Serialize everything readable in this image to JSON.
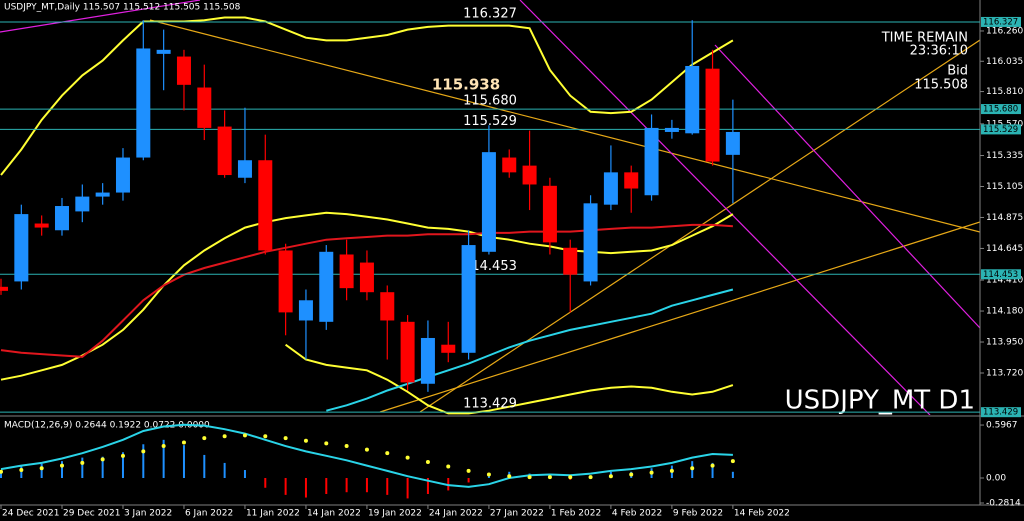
{
  "chart_data": {
    "type": "candlestick",
    "title": "USDJPY_MT,Daily  115.507 115.512 115.505 115.508",
    "symbol_label": "USDJPY_MT D1",
    "time_remain_label": "TIME REMAIN",
    "time_remain": "23:36:10",
    "bid_label": "Bid",
    "bid": "115.508",
    "high_label": 115.938,
    "up_color": "#1e90ff",
    "down_color": "#ff0000",
    "categories": [
      "24 Dec 2021",
      null,
      null,
      "29 Dec 2021",
      null,
      null,
      "3 Jan 2022",
      null,
      null,
      "6 Jan 2022",
      null,
      null,
      "11 Jan 2022",
      null,
      null,
      "14 Jan 2022",
      null,
      null,
      "19 Jan 2022",
      null,
      null,
      "24 Jan 2022",
      null,
      null,
      "27 Jan 2022",
      null,
      null,
      "1 Feb 2022",
      null,
      null,
      "4 Feb 2022",
      null,
      null,
      "9 Feb 2022",
      null,
      null,
      "14 Feb 2022"
    ],
    "open": [
      114.36,
      114.4,
      114.83,
      114.78,
      114.92,
      115.03,
      115.06,
      115.32,
      116.09,
      116.07,
      115.84,
      115.55,
      115.17,
      115.3,
      114.63,
      114.11,
      114.1,
      114.6,
      114.54,
      114.32,
      114.1,
      113.64,
      113.93,
      113.87,
      114.62,
      115.32,
      115.26,
      115.11,
      114.65,
      114.4,
      114.97,
      115.21,
      115.04,
      115.51,
      115.5,
      115.98,
      115.34
    ],
    "high": [
      114.42,
      114.97,
      114.89,
      115.02,
      115.12,
      115.13,
      115.39,
      116.34,
      116.27,
      116.12,
      116.01,
      115.67,
      115.69,
      115.49,
      114.68,
      114.34,
      114.67,
      114.71,
      114.63,
      114.37,
      114.15,
      114.11,
      114.1,
      114.78,
      115.56,
      115.38,
      115.52,
      115.17,
      114.71,
      115.04,
      115.41,
      115.26,
      115.64,
      115.6,
      116.34,
      116.12,
      115.75
    ],
    "low": [
      114.3,
      114.34,
      114.74,
      114.74,
      114.84,
      114.97,
      115.0,
      115.3,
      115.82,
      115.67,
      115.45,
      115.17,
      115.13,
      114.6,
      114.0,
      113.82,
      114.04,
      114.26,
      114.26,
      113.82,
      113.59,
      113.58,
      113.8,
      113.82,
      114.6,
      115.17,
      114.93,
      114.6,
      114.17,
      114.37,
      114.93,
      114.91,
      115.0,
      115.46,
      115.49,
      115.26,
      114.98
    ],
    "close": [
      114.33,
      114.9,
      114.8,
      114.96,
      115.03,
      115.06,
      115.32,
      116.13,
      116.12,
      115.86,
      115.54,
      115.19,
      115.3,
      114.63,
      114.17,
      114.26,
      114.62,
      114.35,
      114.32,
      114.11,
      113.65,
      113.98,
      113.87,
      114.67,
      115.36,
      115.21,
      115.12,
      114.69,
      114.45,
      114.98,
      115.21,
      115.09,
      115.54,
      115.54,
      116.0,
      115.29,
      115.51
    ],
    "overlays": [
      {
        "color": "#ffff33",
        "values": [
          115.19,
          115.38,
          115.6,
          115.78,
          115.93,
          116.04,
          116.19,
          116.33,
          116.33,
          116.33,
          116.34,
          116.36,
          116.36,
          116.33,
          116.27,
          116.21,
          116.19,
          116.19,
          116.21,
          116.23,
          116.27,
          116.29,
          116.3,
          116.3,
          116.3,
          116.3,
          116.28,
          115.97,
          115.78,
          115.66,
          115.65,
          115.66,
          115.75,
          115.88,
          116.01,
          116.1,
          116.19
        ]
      },
      {
        "color": "#ffff33",
        "values": [
          113.67,
          113.7,
          113.74,
          113.78,
          113.85,
          113.93,
          114.04,
          114.19,
          114.37,
          114.52,
          114.63,
          114.72,
          114.8,
          114.84,
          114.87,
          114.89,
          114.91,
          114.9,
          114.88,
          114.86,
          114.83,
          114.8,
          114.79,
          114.77,
          114.73,
          114.71,
          114.68,
          114.66,
          114.63,
          114.62,
          114.61,
          114.62,
          114.63,
          114.67,
          114.74,
          114.81,
          114.9
        ]
      },
      {
        "color": "#ffff33",
        "values": [
          null,
          null,
          null,
          null,
          null,
          null,
          null,
          null,
          null,
          null,
          null,
          null,
          null,
          null,
          113.93,
          113.82,
          113.78,
          113.76,
          113.74,
          113.67,
          113.58,
          113.48,
          113.42,
          113.42,
          113.44,
          113.47,
          113.5,
          113.53,
          113.56,
          113.59,
          113.61,
          113.62,
          113.61,
          113.58,
          113.56,
          113.58,
          113.63
        ]
      },
      {
        "color": "#e0161d",
        "values": [
          113.89,
          113.87,
          113.86,
          113.85,
          113.84,
          113.96,
          114.11,
          114.26,
          114.37,
          114.45,
          114.5,
          114.54,
          114.58,
          114.62,
          114.65,
          114.68,
          114.71,
          114.72,
          114.73,
          114.74,
          114.74,
          114.75,
          114.75,
          114.75,
          114.76,
          114.76,
          114.77,
          114.77,
          114.77,
          114.78,
          114.79,
          114.8,
          114.8,
          114.81,
          114.82,
          114.82,
          114.81
        ]
      },
      {
        "color": "#2ad4e8",
        "values": [
          null,
          null,
          null,
          null,
          null,
          null,
          null,
          null,
          null,
          null,
          null,
          null,
          null,
          null,
          null,
          null,
          113.44,
          113.48,
          113.53,
          113.59,
          113.64,
          113.69,
          113.74,
          113.79,
          113.85,
          113.91,
          113.96,
          114.0,
          114.04,
          114.07,
          114.1,
          114.13,
          114.16,
          114.22,
          114.26,
          114.3,
          114.34
        ]
      }
    ],
    "levels": [
      116.327,
      {
        "value": 115.68,
        "label": "115.680"
      },
      115.529,
      114.453,
      113.429
    ],
    "ylim": [
      113.408,
      116.49
    ],
    "yticks": [
      {
        "value": 116.26,
        "label": "116.260"
      },
      {
        "value": 116.035,
        "label": "116.035"
      },
      {
        "value": 115.81,
        "label": "115.810"
      },
      {
        "value": 115.57,
        "label": "115.570"
      },
      115.335,
      115.105,
      114.875,
      114.645,
      {
        "value": 114.41,
        "label": "114.410"
      },
      {
        "value": 114.18,
        "label": "114.180"
      },
      {
        "value": 113.95,
        "label": "113.950"
      },
      {
        "value": 113.72,
        "label": "113.720"
      }
    ],
    "macd": {
      "title": "MACD(12,26,9) 0.2644 0.1922 0.0722 0.0000",
      "ylim": [
        -0.304,
        0.676
      ],
      "yticks": [
        0.5967,
        {
          "value": 0,
          "label": "0.00"
        },
        -0.2814
      ],
      "main_color": "#2ad4e8",
      "signal_color": "#ffff33",
      "histogram": [
        0.09,
        0.14,
        0.16,
        0.19,
        0.23,
        0.24,
        0.29,
        0.38,
        0.43,
        0.37,
        0.26,
        0.17,
        0.09,
        -0.11,
        -0.19,
        -0.22,
        -0.18,
        -0.16,
        -0.16,
        -0.19,
        -0.23,
        -0.18,
        -0.14,
        -0.05,
        0.05,
        0.07,
        0.05,
        0.01,
        -0.02,
        0.02,
        0.07,
        0.07,
        0.11,
        0.14,
        0.19,
        0.17,
        0.07
      ],
      "main": [
        0.1,
        0.14,
        0.17,
        0.22,
        0.28,
        0.35,
        0.43,
        0.53,
        0.58,
        0.6,
        0.59,
        0.55,
        0.5,
        0.43,
        0.36,
        0.3,
        0.25,
        0.2,
        0.14,
        0.08,
        0.02,
        -0.03,
        -0.08,
        -0.1,
        -0.07,
        0.0,
        0.03,
        0.04,
        0.03,
        0.05,
        0.08,
        0.1,
        0.13,
        0.17,
        0.23,
        0.27,
        0.26
      ],
      "signal": [
        0.07,
        0.09,
        0.11,
        0.14,
        0.17,
        0.21,
        0.25,
        0.3,
        0.36,
        0.4,
        0.45,
        0.47,
        0.48,
        0.47,
        0.45,
        0.42,
        0.39,
        0.36,
        0.32,
        0.28,
        0.23,
        0.18,
        0.13,
        0.08,
        0.04,
        0.02,
        0.01,
        0.01,
        0.01,
        0.01,
        0.02,
        0.04,
        0.06,
        0.08,
        0.11,
        0.14,
        0.19
      ]
    }
  }
}
